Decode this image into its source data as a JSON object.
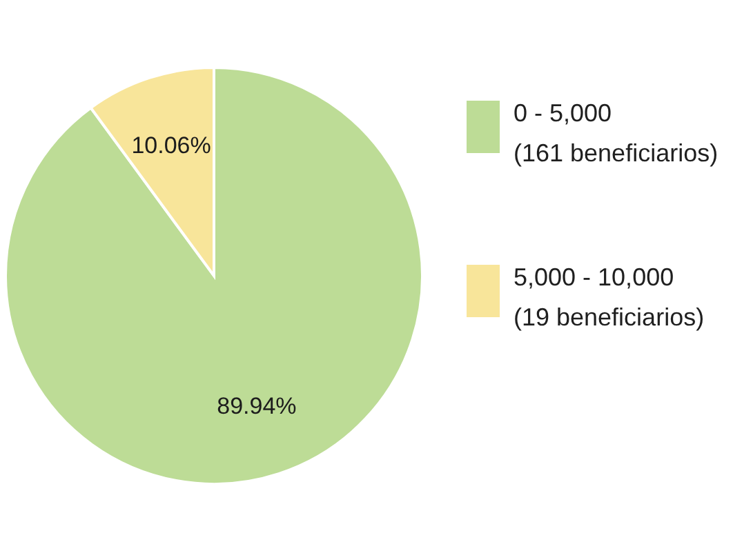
{
  "chart_data": {
    "type": "pie",
    "categories": [
      "0 - 5,000\n(161 beneficiarios)",
      "5,000 - 10,000\n(19 beneficiarios)"
    ],
    "values": [
      89.94,
      10.06
    ],
    "colors": [
      "#bddc96",
      "#f8e59a"
    ],
    "value_labels": [
      "89.94%",
      "10.06%"
    ],
    "legend": "right"
  }
}
